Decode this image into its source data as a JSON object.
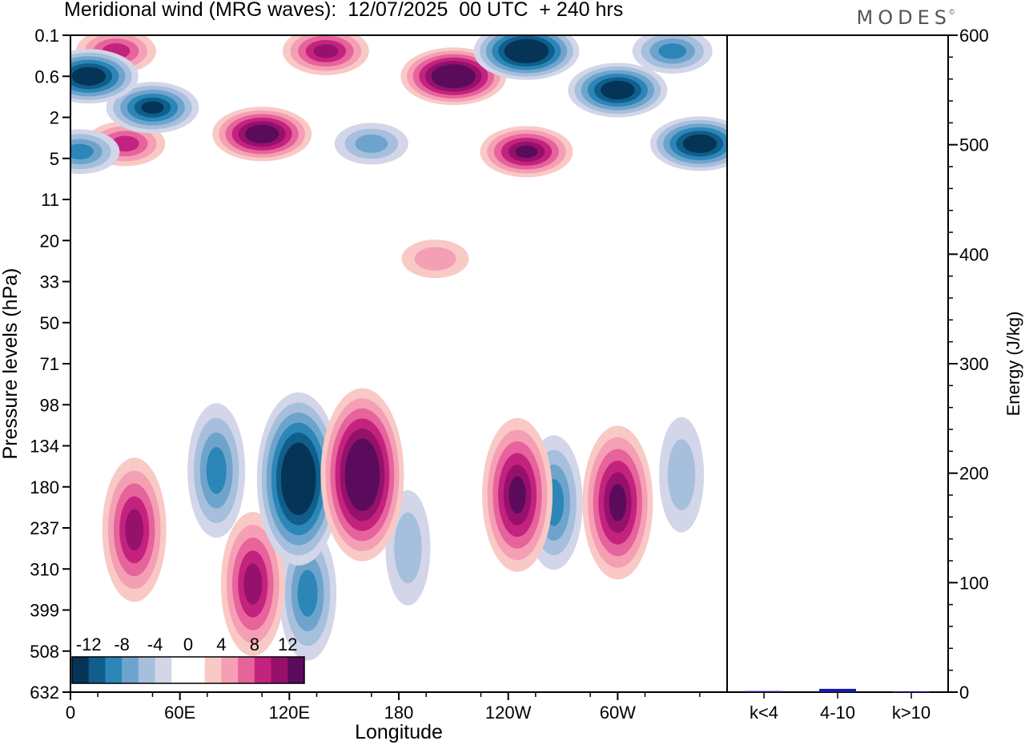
{
  "header": {
    "title": "Meridional wind (MRG waves):  12/07/2025  00 UTC  + 240 hrs",
    "brand": "MODES",
    "brand_mark": "©"
  },
  "colors": {
    "scale": [
      "#053457",
      "#0f5e8c",
      "#2c86b8",
      "#6ea4cc",
      "#a6bfdc",
      "#d2d6e8",
      "#ffffff",
      "#ffffff",
      "#f9c9c6",
      "#f59fb4",
      "#e6639b",
      "#c4227f",
      "#96116c",
      "#5b0b5c"
    ],
    "bar": "#1a1aa8"
  },
  "chart_data": [
    {
      "type": "heatmap",
      "title": "Meridional wind (MRG waves):  12/07/2025  00 UTC  + 240 hrs",
      "xlabel": "Longitude",
      "ylabel": "Pressure levels (hPa)",
      "x_ticks": [
        "0",
        "60E",
        "120E",
        "180",
        "120W",
        "60W"
      ],
      "y_ticks": [
        "0.1",
        "0.6",
        "2",
        "5",
        "11",
        "20",
        "33",
        "50",
        "71",
        "98",
        "134",
        "180",
        "237",
        "310",
        "399",
        "508",
        "632"
      ],
      "colorbar": {
        "levels": [
          -14,
          -12,
          -10,
          -8,
          -6,
          -4,
          -2,
          0,
          2,
          4,
          6,
          8,
          10,
          12,
          14
        ],
        "labels": [
          "-12",
          "-8",
          "-4",
          "0",
          "4",
          "8",
          "12"
        ]
      },
      "features": [
        {
          "lon": 10,
          "lev": 0.6,
          "value": -14
        },
        {
          "lon": 45,
          "lev": 1.5,
          "value": -11
        },
        {
          "lon": 5,
          "lev": 4.3,
          "value": -8
        },
        {
          "lon": 105,
          "lev": 2.9,
          "value": 14
        },
        {
          "lon": 30,
          "lev": 3.6,
          "value": 7
        },
        {
          "lon": 25,
          "lev": 0.2,
          "value": 7
        },
        {
          "lon": 140,
          "lev": 0.2,
          "value": 10
        },
        {
          "lon": 210,
          "lev": 0.6,
          "value": 15
        },
        {
          "lon": 250,
          "lev": 0.2,
          "value": -15
        },
        {
          "lon": 300,
          "lev": 0.9,
          "value": -14
        },
        {
          "lon": 345,
          "lev": 3.6,
          "value": -14
        },
        {
          "lon": 330,
          "lev": 0.2,
          "value": -8
        },
        {
          "lon": 165,
          "lev": 3.6,
          "value": -6
        },
        {
          "lon": 250,
          "lev": 4.3,
          "value": 11
        },
        {
          "lon": 200,
          "lev": 25,
          "value": 4
        },
        {
          "lon": 35,
          "lev": 240,
          "value": 10
        },
        {
          "lon": 80,
          "lev": 160,
          "value": -7
        },
        {
          "lon": 100,
          "lev": 340,
          "value": 10
        },
        {
          "lon": 125,
          "lev": 170,
          "value": -15
        },
        {
          "lon": 130,
          "lev": 360,
          "value": -8
        },
        {
          "lon": 160,
          "lev": 165,
          "value": 15
        },
        {
          "lon": 185,
          "lev": 270,
          "value": -4
        },
        {
          "lon": 245,
          "lev": 190,
          "value": 11
        },
        {
          "lon": 265,
          "lev": 200,
          "value": -7
        },
        {
          "lon": 300,
          "lev": 200,
          "value": 12
        },
        {
          "lon": 335,
          "lev": 165,
          "value": -3
        }
      ]
    },
    {
      "type": "bar",
      "categories": [
        "k<4",
        "4-10",
        "k>10"
      ],
      "values": [
        1,
        3,
        0.5
      ],
      "ylabel": "Energy (J/kg)",
      "ylim": [
        0,
        600
      ],
      "y_ticks": [
        "0",
        "100",
        "200",
        "300",
        "400",
        "500",
        "600"
      ]
    }
  ]
}
